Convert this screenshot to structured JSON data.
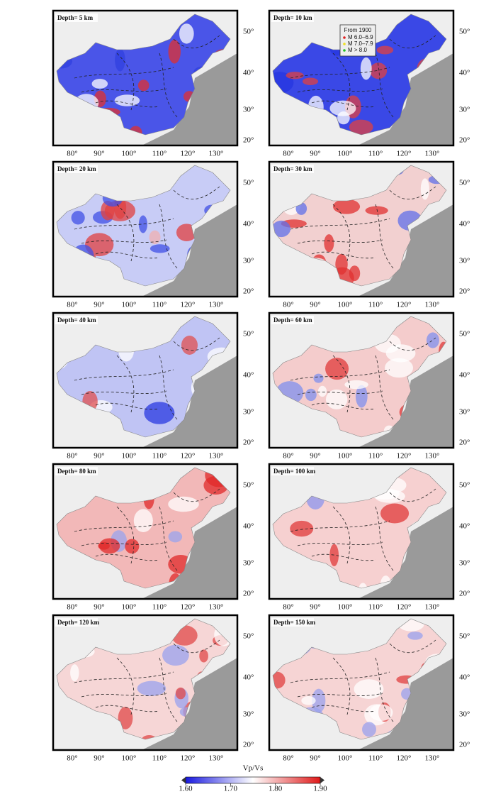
{
  "panels": [
    {
      "label": "Depth= 5 km"
    },
    {
      "label": "Depth= 10 km"
    },
    {
      "label": "Depth= 20 km"
    },
    {
      "label": "Depth= 30 km"
    },
    {
      "label": "Depth= 40 km"
    },
    {
      "label": "Depth= 60 km"
    },
    {
      "label": "Depth= 80 km"
    },
    {
      "label": "Depth= 100 km"
    },
    {
      "label": "Depth= 120 km"
    },
    {
      "label": "Depth= 150 km"
    }
  ],
  "lon_labels": [
    "80°",
    "90°",
    "100°",
    "110°",
    "120°",
    "130°"
  ],
  "lat_labels": [
    "50°",
    "40°",
    "30°",
    "20°"
  ],
  "legend": {
    "title": "From 1900",
    "items": [
      "M 6.0–6.9",
      "M 7.0–7.9",
      "M > 8.0"
    ]
  },
  "colorbar": {
    "label": "Vp/Vs",
    "lim": [
      1.6,
      1.9
    ],
    "ticks": [
      {
        "value": 1.6,
        "label": "1.60"
      },
      {
        "value": 1.7,
        "label": "1.70"
      },
      {
        "value": 1.8,
        "label": "1.80"
      },
      {
        "value": 1.9,
        "label": "1.90"
      }
    ]
  }
}
